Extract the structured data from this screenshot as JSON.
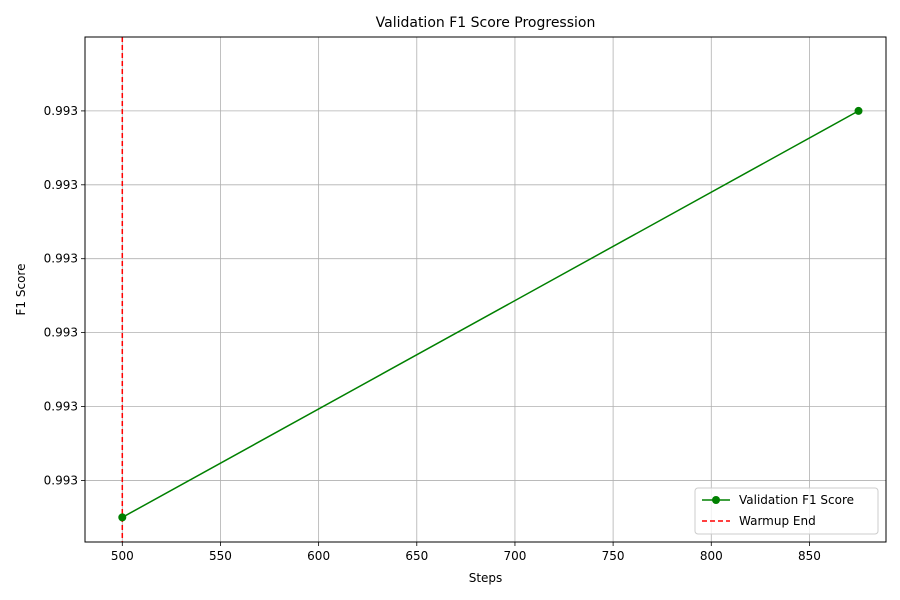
{
  "chart_data": {
    "type": "line",
    "title": "Validation F1 Score Progression",
    "xlabel": "Steps",
    "ylabel": "F1 Score",
    "xlim": [
      481,
      889
    ],
    "ylim": [
      0.99252,
      0.99334
    ],
    "xticks": [
      500,
      550,
      600,
      650,
      700,
      750,
      800,
      850
    ],
    "yticks": [
      {
        "value": 0.99262,
        "label": "0.993"
      },
      {
        "value": 0.99274,
        "label": "0.993"
      },
      {
        "value": 0.99286,
        "label": "0.993"
      },
      {
        "value": 0.99298,
        "label": "0.993"
      },
      {
        "value": 0.9931,
        "label": "0.993"
      },
      {
        "value": 0.99322,
        "label": "0.993"
      }
    ],
    "grid": true,
    "series": [
      {
        "name": "Validation F1 Score",
        "color": "#008000",
        "style": "solid",
        "marker": "circle",
        "x": [
          500,
          875
        ],
        "y": [
          0.99256,
          0.99322
        ]
      }
    ],
    "reference_lines": [
      {
        "name": "Warmup End",
        "orientation": "vertical",
        "x": 500,
        "color": "#ff0000",
        "style": "dashed"
      }
    ],
    "legend": {
      "position": "bottom-right",
      "entries": [
        "Validation F1 Score",
        "Warmup End"
      ]
    }
  }
}
